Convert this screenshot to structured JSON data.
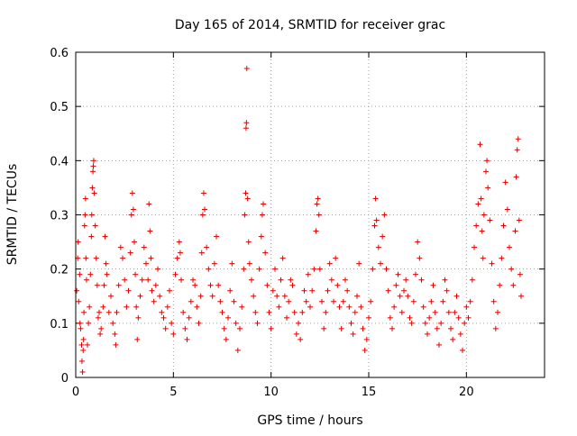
{
  "chart_data": {
    "type": "scatter",
    "title": "Day 165 of 2014, SRMTID for receiver grac",
    "xlabel": "GPS time / hours",
    "ylabel": "SRMTID / TECUs",
    "xlim": [
      0,
      24
    ],
    "ylim": [
      0,
      0.6
    ],
    "xticks": [
      0,
      5,
      10,
      15,
      20
    ],
    "yticks": [
      0,
      0.1,
      0.2,
      0.3,
      0.4,
      0.5,
      0.6
    ],
    "xtick_labels": [
      "0",
      "5",
      "10",
      "15",
      "20"
    ],
    "ytick_labels": [
      "0",
      "0.1",
      "0.2",
      "0.3",
      "0.4",
      "0.5",
      "0.6"
    ],
    "grid": true,
    "marker": "+",
    "color": "#e00000",
    "series": [
      {
        "name": "SRMTID",
        "points": [
          [
            0.05,
            0.16
          ],
          [
            0.1,
            0.22
          ],
          [
            0.12,
            0.25
          ],
          [
            0.15,
            0.14
          ],
          [
            0.2,
            0.19
          ],
          [
            0.22,
            0.1
          ],
          [
            0.25,
            0.09
          ],
          [
            0.3,
            0.06
          ],
          [
            0.32,
            0.03
          ],
          [
            0.35,
            0.01
          ],
          [
            0.38,
            0.05
          ],
          [
            0.4,
            0.07
          ],
          [
            0.42,
            0.12
          ],
          [
            0.45,
            0.28
          ],
          [
            0.48,
            0.3
          ],
          [
            0.5,
            0.33
          ],
          [
            0.52,
            0.22
          ],
          [
            0.55,
            0.18
          ],
          [
            0.6,
            0.06
          ],
          [
            0.65,
            0.1
          ],
          [
            0.7,
            0.13
          ],
          [
            0.75,
            0.19
          ],
          [
            0.8,
            0.26
          ],
          [
            0.82,
            0.3
          ],
          [
            0.85,
            0.35
          ],
          [
            0.88,
            0.38
          ],
          [
            0.9,
            0.39
          ],
          [
            0.92,
            0.4
          ],
          [
            0.95,
            0.34
          ],
          [
            1.0,
            0.28
          ],
          [
            1.05,
            0.22
          ],
          [
            1.1,
            0.17
          ],
          [
            1.15,
            0.11
          ],
          [
            1.2,
            0.12
          ],
          [
            1.25,
            0.08
          ],
          [
            1.3,
            0.09
          ],
          [
            1.4,
            0.13
          ],
          [
            1.45,
            0.17
          ],
          [
            1.5,
            0.26
          ],
          [
            1.55,
            0.21
          ],
          [
            1.6,
            0.19
          ],
          [
            1.7,
            0.12
          ],
          [
            1.8,
            0.15
          ],
          [
            1.9,
            0.1
          ],
          [
            2.0,
            0.08
          ],
          [
            2.05,
            0.06
          ],
          [
            2.1,
            0.12
          ],
          [
            2.2,
            0.17
          ],
          [
            2.3,
            0.24
          ],
          [
            2.4,
            0.22
          ],
          [
            2.5,
            0.18
          ],
          [
            2.6,
            0.13
          ],
          [
            2.7,
            0.16
          ],
          [
            2.8,
            0.23
          ],
          [
            2.85,
            0.3
          ],
          [
            2.9,
            0.34
          ],
          [
            2.95,
            0.31
          ],
          [
            3.0,
            0.25
          ],
          [
            3.05,
            0.19
          ],
          [
            3.1,
            0.13
          ],
          [
            3.15,
            0.07
          ],
          [
            3.2,
            0.11
          ],
          [
            3.3,
            0.15
          ],
          [
            3.4,
            0.18
          ],
          [
            3.5,
            0.24
          ],
          [
            3.6,
            0.21
          ],
          [
            3.7,
            0.18
          ],
          [
            3.75,
            0.32
          ],
          [
            3.8,
            0.27
          ],
          [
            3.85,
            0.22
          ],
          [
            3.9,
            0.16
          ],
          [
            4.0,
            0.14
          ],
          [
            4.1,
            0.17
          ],
          [
            4.2,
            0.2
          ],
          [
            4.3,
            0.15
          ],
          [
            4.4,
            0.12
          ],
          [
            4.5,
            0.11
          ],
          [
            4.6,
            0.09
          ],
          [
            4.7,
            0.13
          ],
          [
            4.8,
            0.16
          ],
          [
            4.9,
            0.1
          ],
          [
            5.0,
            0.08
          ],
          [
            5.1,
            0.19
          ],
          [
            5.2,
            0.22
          ],
          [
            5.3,
            0.25
          ],
          [
            5.35,
            0.23
          ],
          [
            5.4,
            0.18
          ],
          [
            5.5,
            0.12
          ],
          [
            5.6,
            0.09
          ],
          [
            5.7,
            0.07
          ],
          [
            5.8,
            0.11
          ],
          [
            5.9,
            0.14
          ],
          [
            6.0,
            0.18
          ],
          [
            6.1,
            0.17
          ],
          [
            6.2,
            0.13
          ],
          [
            6.3,
            0.1
          ],
          [
            6.4,
            0.15
          ],
          [
            6.45,
            0.23
          ],
          [
            6.5,
            0.3
          ],
          [
            6.55,
            0.34
          ],
          [
            6.6,
            0.31
          ],
          [
            6.7,
            0.24
          ],
          [
            6.8,
            0.2
          ],
          [
            6.9,
            0.17
          ],
          [
            7.0,
            0.15
          ],
          [
            7.1,
            0.21
          ],
          [
            7.2,
            0.26
          ],
          [
            7.3,
            0.17
          ],
          [
            7.4,
            0.14
          ],
          [
            7.5,
            0.12
          ],
          [
            7.6,
            0.09
          ],
          [
            7.7,
            0.07
          ],
          [
            7.8,
            0.11
          ],
          [
            7.9,
            0.16
          ],
          [
            8.0,
            0.21
          ],
          [
            8.1,
            0.14
          ],
          [
            8.2,
            0.1
          ],
          [
            8.3,
            0.05
          ],
          [
            8.4,
            0.09
          ],
          [
            8.5,
            0.13
          ],
          [
            8.6,
            0.2
          ],
          [
            8.65,
            0.3
          ],
          [
            8.7,
            0.34
          ],
          [
            8.72,
            0.46
          ],
          [
            8.74,
            0.47
          ],
          [
            8.76,
            0.57
          ],
          [
            8.8,
            0.33
          ],
          [
            8.85,
            0.25
          ],
          [
            8.9,
            0.21
          ],
          [
            9.0,
            0.18
          ],
          [
            9.1,
            0.15
          ],
          [
            9.2,
            0.12
          ],
          [
            9.3,
            0.1
          ],
          [
            9.4,
            0.2
          ],
          [
            9.5,
            0.26
          ],
          [
            9.55,
            0.3
          ],
          [
            9.6,
            0.32
          ],
          [
            9.7,
            0.23
          ],
          [
            9.8,
            0.17
          ],
          [
            9.9,
            0.12
          ],
          [
            10.0,
            0.09
          ],
          [
            10.1,
            0.16
          ],
          [
            10.2,
            0.2
          ],
          [
            10.3,
            0.15
          ],
          [
            10.4,
            0.13
          ],
          [
            10.5,
            0.18
          ],
          [
            10.6,
            0.22
          ],
          [
            10.7,
            0.15
          ],
          [
            10.8,
            0.11
          ],
          [
            10.9,
            0.14
          ],
          [
            11.0,
            0.18
          ],
          [
            11.1,
            0.17
          ],
          [
            11.2,
            0.12
          ],
          [
            11.3,
            0.08
          ],
          [
            11.4,
            0.1
          ],
          [
            11.5,
            0.07
          ],
          [
            11.6,
            0.12
          ],
          [
            11.7,
            0.16
          ],
          [
            11.8,
            0.14
          ],
          [
            11.9,
            0.19
          ],
          [
            12.0,
            0.13
          ],
          [
            12.1,
            0.16
          ],
          [
            12.2,
            0.2
          ],
          [
            12.3,
            0.27
          ],
          [
            12.35,
            0.32
          ],
          [
            12.4,
            0.33
          ],
          [
            12.45,
            0.3
          ],
          [
            12.5,
            0.2
          ],
          [
            12.6,
            0.14
          ],
          [
            12.7,
            0.09
          ],
          [
            12.8,
            0.12
          ],
          [
            12.9,
            0.16
          ],
          [
            13.0,
            0.21
          ],
          [
            13.1,
            0.18
          ],
          [
            13.2,
            0.14
          ],
          [
            13.3,
            0.22
          ],
          [
            13.4,
            0.17
          ],
          [
            13.5,
            0.13
          ],
          [
            13.6,
            0.09
          ],
          [
            13.7,
            0.14
          ],
          [
            13.8,
            0.18
          ],
          [
            13.9,
            0.16
          ],
          [
            14.0,
            0.13
          ],
          [
            14.1,
            0.1
          ],
          [
            14.2,
            0.08
          ],
          [
            14.3,
            0.12
          ],
          [
            14.4,
            0.15
          ],
          [
            14.5,
            0.21
          ],
          [
            14.6,
            0.13
          ],
          [
            14.7,
            0.09
          ],
          [
            14.8,
            0.05
          ],
          [
            14.9,
            0.07
          ],
          [
            15.0,
            0.11
          ],
          [
            15.1,
            0.14
          ],
          [
            15.2,
            0.2
          ],
          [
            15.3,
            0.28
          ],
          [
            15.35,
            0.33
          ],
          [
            15.4,
            0.29
          ],
          [
            15.5,
            0.24
          ],
          [
            15.6,
            0.21
          ],
          [
            15.7,
            0.26
          ],
          [
            15.8,
            0.3
          ],
          [
            15.9,
            0.2
          ],
          [
            16.0,
            0.16
          ],
          [
            16.1,
            0.11
          ],
          [
            16.2,
            0.09
          ],
          [
            16.3,
            0.13
          ],
          [
            16.4,
            0.17
          ],
          [
            16.5,
            0.19
          ],
          [
            16.6,
            0.15
          ],
          [
            16.7,
            0.12
          ],
          [
            16.8,
            0.16
          ],
          [
            16.9,
            0.18
          ],
          [
            17.0,
            0.15
          ],
          [
            17.1,
            0.11
          ],
          [
            17.2,
            0.1
          ],
          [
            17.3,
            0.14
          ],
          [
            17.4,
            0.19
          ],
          [
            17.5,
            0.25
          ],
          [
            17.6,
            0.22
          ],
          [
            17.7,
            0.18
          ],
          [
            17.8,
            0.13
          ],
          [
            17.9,
            0.1
          ],
          [
            18.0,
            0.08
          ],
          [
            18.1,
            0.11
          ],
          [
            18.2,
            0.14
          ],
          [
            18.3,
            0.17
          ],
          [
            18.4,
            0.12
          ],
          [
            18.5,
            0.09
          ],
          [
            18.6,
            0.06
          ],
          [
            18.7,
            0.1
          ],
          [
            18.8,
            0.14
          ],
          [
            18.9,
            0.18
          ],
          [
            19.0,
            0.16
          ],
          [
            19.1,
            0.12
          ],
          [
            19.2,
            0.09
          ],
          [
            19.3,
            0.07
          ],
          [
            19.4,
            0.12
          ],
          [
            19.5,
            0.15
          ],
          [
            19.6,
            0.11
          ],
          [
            19.7,
            0.08
          ],
          [
            19.8,
            0.05
          ],
          [
            19.9,
            0.1
          ],
          [
            20.0,
            0.13
          ],
          [
            20.1,
            0.11
          ],
          [
            20.2,
            0.14
          ],
          [
            20.3,
            0.18
          ],
          [
            20.4,
            0.24
          ],
          [
            20.5,
            0.28
          ],
          [
            20.6,
            0.32
          ],
          [
            20.7,
            0.43
          ],
          [
            20.75,
            0.33
          ],
          [
            20.8,
            0.27
          ],
          [
            20.85,
            0.22
          ],
          [
            20.9,
            0.3
          ],
          [
            21.0,
            0.38
          ],
          [
            21.05,
            0.4
          ],
          [
            21.1,
            0.35
          ],
          [
            21.2,
            0.29
          ],
          [
            21.3,
            0.21
          ],
          [
            21.4,
            0.14
          ],
          [
            21.5,
            0.09
          ],
          [
            21.6,
            0.12
          ],
          [
            21.7,
            0.17
          ],
          [
            21.8,
            0.22
          ],
          [
            21.9,
            0.28
          ],
          [
            22.0,
            0.36
          ],
          [
            22.1,
            0.31
          ],
          [
            22.2,
            0.24
          ],
          [
            22.3,
            0.2
          ],
          [
            22.4,
            0.17
          ],
          [
            22.5,
            0.27
          ],
          [
            22.55,
            0.37
          ],
          [
            22.6,
            0.42
          ],
          [
            22.65,
            0.44
          ],
          [
            22.7,
            0.29
          ],
          [
            22.75,
            0.19
          ],
          [
            22.8,
            0.15
          ]
        ]
      }
    ]
  }
}
